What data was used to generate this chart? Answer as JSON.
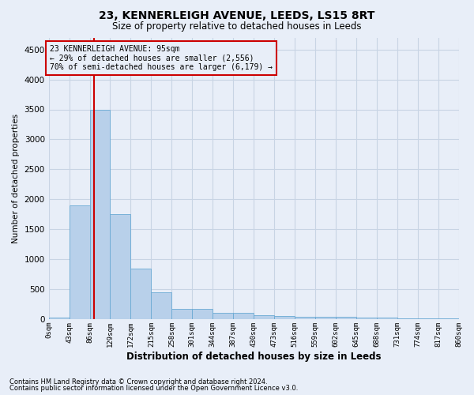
{
  "title": "23, KENNERLEIGH AVENUE, LEEDS, LS15 8RT",
  "subtitle": "Size of property relative to detached houses in Leeds",
  "xlabel": "Distribution of detached houses by size in Leeds",
  "ylabel": "Number of detached properties",
  "footnote1": "Contains HM Land Registry data © Crown copyright and database right 2024.",
  "footnote2": "Contains public sector information licensed under the Open Government Licence v3.0.",
  "bin_labels": [
    "0sqm",
    "43sqm",
    "86sqm",
    "129sqm",
    "172sqm",
    "215sqm",
    "258sqm",
    "301sqm",
    "344sqm",
    "387sqm",
    "430sqm",
    "473sqm",
    "516sqm",
    "559sqm",
    "602sqm",
    "645sqm",
    "688sqm",
    "731sqm",
    "774sqm",
    "817sqm",
    "860sqm"
  ],
  "bar_values": [
    30,
    1900,
    3490,
    1750,
    840,
    450,
    175,
    175,
    100,
    100,
    60,
    50,
    45,
    40,
    35,
    30,
    20,
    18,
    15,
    15
  ],
  "bar_color": "#b8d0ea",
  "bar_edge_color": "#6aaad4",
  "grid_color": "#c8d4e4",
  "background_color": "#e8eef8",
  "vline_x": 95,
  "vline_color": "#cc0000",
  "ylim": [
    0,
    4700
  ],
  "yticks": [
    0,
    500,
    1000,
    1500,
    2000,
    2500,
    3000,
    3500,
    4000,
    4500
  ],
  "annotation_title": "23 KENNERLEIGH AVENUE: 95sqm",
  "annotation_line1": "← 29% of detached houses are smaller (2,556)",
  "annotation_line2": "70% of semi-detached houses are larger (6,179) →",
  "annotation_box_color": "#cc0000",
  "bin_width": 43
}
